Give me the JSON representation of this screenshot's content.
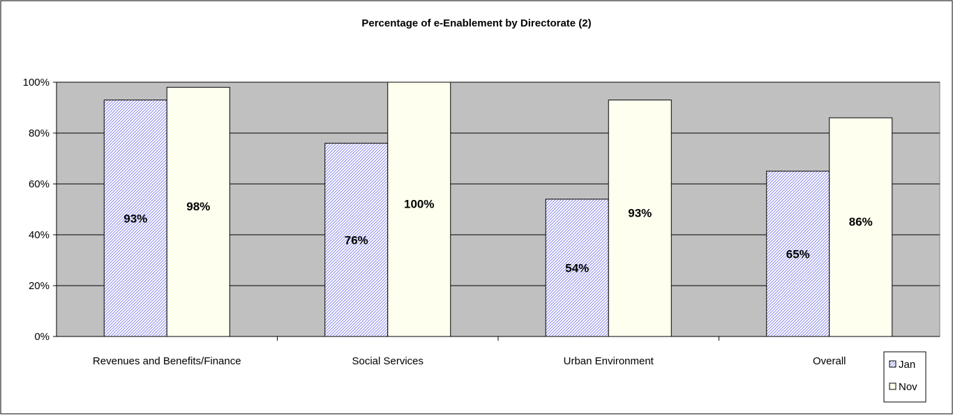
{
  "chart_data": {
    "type": "bar",
    "title": "Percentage of e-Enablement by Directorate (2)",
    "xlabel": "",
    "ylabel": "",
    "ylim": [
      0,
      100
    ],
    "y_ticks": [
      "0%",
      "20%",
      "40%",
      "60%",
      "80%",
      "100%"
    ],
    "grid": true,
    "legend_position": "bottom-right",
    "categories": [
      "Revenues and Benefits/Finance",
      "Social Services",
      "Urban Environment",
      "Overall"
    ],
    "series": [
      {
        "name": "Jan",
        "values": [
          93,
          76,
          54,
          65
        ],
        "labels": [
          "93%",
          "76%",
          "54%",
          "65%"
        ],
        "color": "#9999ff",
        "pattern": "diagonal-hatch"
      },
      {
        "name": "Nov",
        "values": [
          98,
          100,
          93,
          86
        ],
        "labels": [
          "98%",
          "100%",
          "93%",
          "86%"
        ],
        "color": "#ffffef",
        "pattern": "solid"
      }
    ],
    "plot_background": "#c0c0c0"
  }
}
